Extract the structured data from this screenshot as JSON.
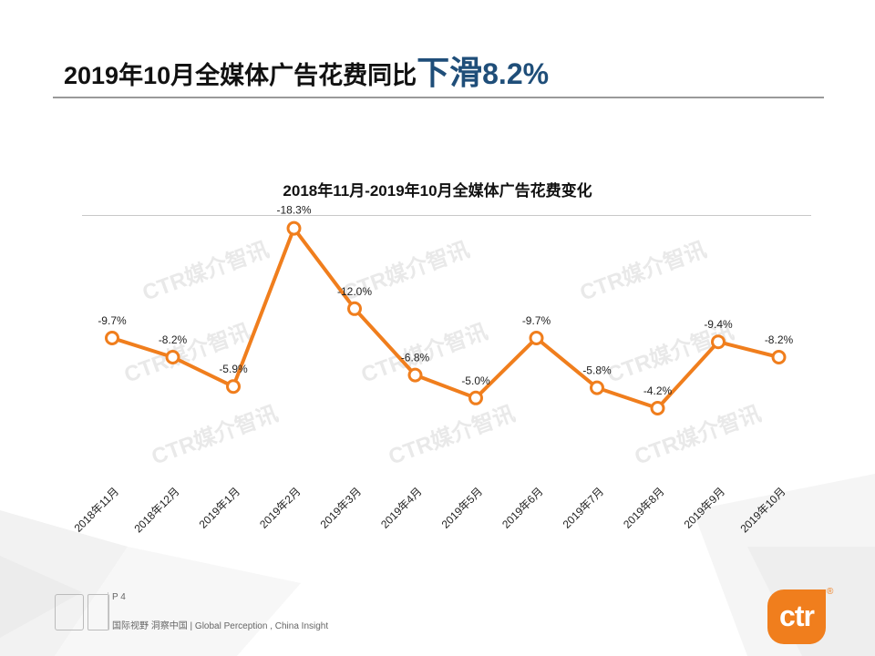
{
  "title": {
    "prefix": "2019年10月全媒体广告花费同比",
    "highlight": "下滑",
    "value": "8.2%"
  },
  "chart_data": {
    "type": "line",
    "title": "2018年11月-2019年10月全媒体广告花费变化",
    "categories": [
      "2018年11月",
      "2018年12月",
      "2019年1月",
      "2019年2月",
      "2019年3月",
      "2019年4月",
      "2019年5月",
      "2019年6月",
      "2019年7月",
      "2019年8月",
      "2019年9月",
      "2019年10月"
    ],
    "values": [
      -9.7,
      -8.2,
      -5.9,
      -18.3,
      -12.0,
      -6.8,
      -5.0,
      -9.7,
      -5.8,
      -4.2,
      -9.4,
      -8.2
    ],
    "data_labels": [
      "-9.7%",
      "-8.2%",
      "-5.9%",
      "-18.3%",
      "-12.0%",
      "-6.8%",
      "-5.0%",
      "-9.7%",
      "-5.8%",
      "-4.2%",
      "-9.4%",
      "-8.2%"
    ],
    "unit": "%",
    "xlabel": "",
    "ylabel": "",
    "grid": false,
    "line_color": "#f07e1d",
    "watermark": "CTR媒介智讯"
  },
  "footer": {
    "page": "P 4",
    "slogan": "国际视野 洞察中国 | Global Perception , China Insight"
  },
  "logo": {
    "text": "ctr",
    "mark": "®",
    "color": "#f07e1d"
  }
}
